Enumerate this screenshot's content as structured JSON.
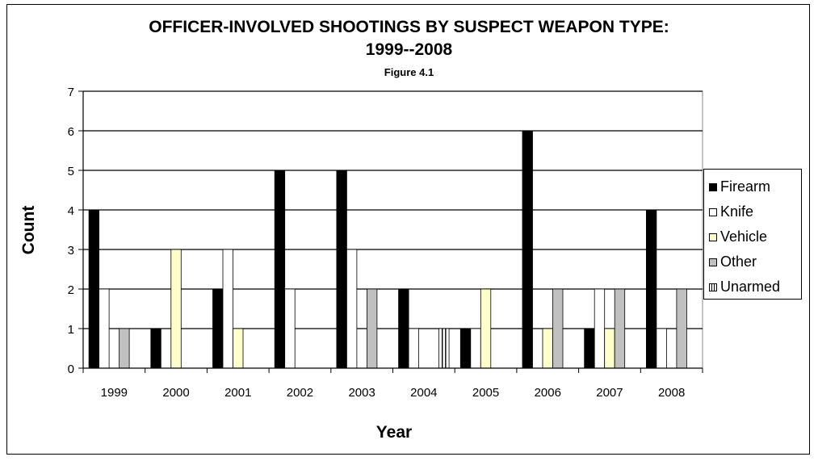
{
  "colors": {
    "Firearm": "#000000",
    "Knife": "#ffffff",
    "Vehicle": "#ffffcc",
    "Other": "#c0c0c0",
    "Unarmed": "#ffffff"
  },
  "chart_data": {
    "type": "bar",
    "title": "OFFICER-INVOLVED SHOOTINGS BY SUSPECT WEAPON TYPE:",
    "title_line2": "1999--2008",
    "subtitle": "Figure 4.1",
    "xlabel": "Year",
    "ylabel": "Count",
    "ylim": [
      0,
      7
    ],
    "yticks": [
      0,
      1,
      2,
      3,
      4,
      5,
      6,
      7
    ],
    "grid": true,
    "legend_position": "right",
    "categories": [
      "1999",
      "2000",
      "2001",
      "2002",
      "2003",
      "2004",
      "2005",
      "2006",
      "2007",
      "2008"
    ],
    "series": [
      {
        "name": "Firearm",
        "values": [
          4,
          1,
          2,
          5,
          5,
          2,
          1,
          6,
          1,
          4
        ]
      },
      {
        "name": "Knife",
        "values": [
          2,
          0,
          3,
          2,
          3,
          1,
          1,
          0,
          2,
          1
        ]
      },
      {
        "name": "Vehicle",
        "values": [
          0,
          3,
          1,
          0,
          0,
          0,
          2,
          1,
          1,
          0
        ]
      },
      {
        "name": "Other",
        "values": [
          1,
          0,
          0,
          0,
          2,
          0,
          0,
          2,
          2,
          2
        ]
      },
      {
        "name": "Unarmed",
        "values": [
          0,
          0,
          0,
          0,
          0,
          1,
          0,
          0,
          0,
          0
        ]
      }
    ]
  }
}
